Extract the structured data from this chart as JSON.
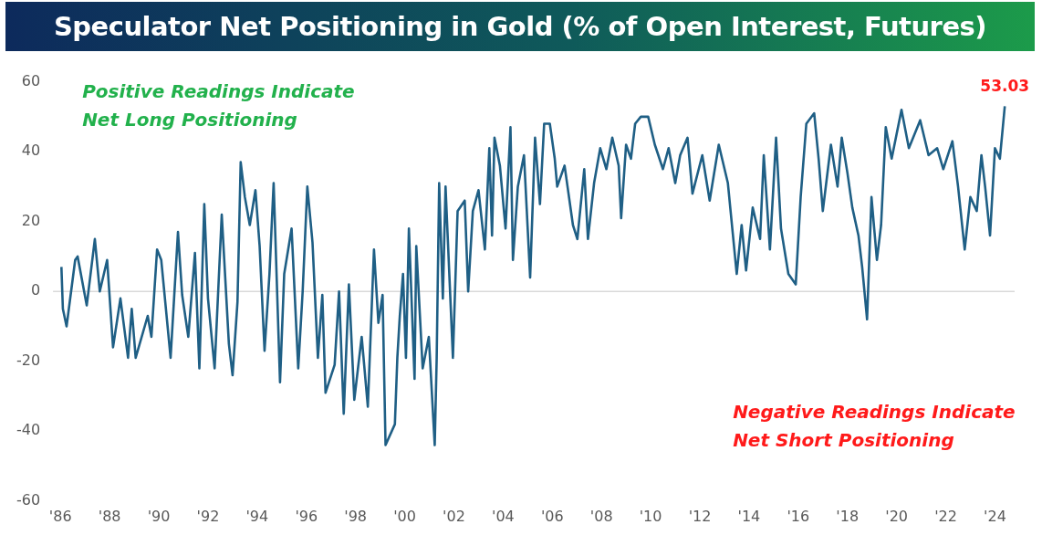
{
  "chart_data": {
    "type": "line",
    "title": "Speculator Net Positioning in Gold (% of Open Interest, Futures)",
    "x": [
      1986.04,
      1986.1,
      1986.25,
      1986.6,
      1986.7,
      1987.07,
      1987.4,
      1987.6,
      1987.9,
      1988.14,
      1988.44,
      1988.75,
      1988.9,
      1989.06,
      1989.55,
      1989.7,
      1989.93,
      1990.1,
      1990.48,
      1990.78,
      1990.95,
      1991.2,
      1991.47,
      1991.65,
      1991.85,
      1992.0,
      1992.27,
      1992.56,
      1992.85,
      1993.0,
      1993.2,
      1993.33,
      1993.5,
      1993.7,
      1993.93,
      1994.1,
      1994.3,
      1994.5,
      1994.67,
      1994.93,
      1995.1,
      1995.4,
      1995.67,
      1995.85,
      1996.04,
      1996.25,
      1996.47,
      1996.65,
      1996.78,
      1997.15,
      1997.33,
      1997.52,
      1997.73,
      1997.95,
      1998.25,
      1998.5,
      1998.75,
      1998.93,
      1999.1,
      1999.22,
      1999.6,
      1999.7,
      1999.8,
      1999.93,
      2000.05,
      2000.17,
      2000.4,
      2000.47,
      2000.73,
      2000.98,
      2001.22,
      2001.3,
      2001.4,
      2001.55,
      2001.66,
      2001.96,
      2002.15,
      2002.44,
      2002.58,
      2002.77,
      2003.0,
      2003.26,
      2003.44,
      2003.55,
      2003.65,
      2003.87,
      2004.1,
      2004.3,
      2004.4,
      2004.6,
      2004.85,
      2005.1,
      2005.3,
      2005.5,
      2005.67,
      2005.9,
      2006.1,
      2006.2,
      2006.5,
      2006.84,
      2007.02,
      2007.3,
      2007.45,
      2007.7,
      2007.95,
      2008.2,
      2008.44,
      2008.7,
      2008.8,
      2009.0,
      2009.2,
      2009.37,
      2009.6,
      2009.9,
      2010.17,
      2010.5,
      2010.73,
      2011.0,
      2011.2,
      2011.5,
      2011.7,
      2012.1,
      2012.4,
      2012.77,
      2013.14,
      2013.5,
      2013.7,
      2013.88,
      2014.15,
      2014.45,
      2014.6,
      2014.85,
      2015.1,
      2015.3,
      2015.6,
      2015.9,
      2016.1,
      2016.33,
      2016.65,
      2016.83,
      2017.0,
      2017.33,
      2017.6,
      2017.77,
      2018.0,
      2018.2,
      2018.45,
      2018.6,
      2018.8,
      2018.98,
      2019.2,
      2019.37,
      2019.56,
      2019.8,
      2020.2,
      2020.5,
      2020.96,
      2021.3,
      2021.65,
      2021.9,
      2022.27,
      2022.5,
      2022.77,
      2023.0,
      2023.26,
      2023.45,
      2023.6,
      2023.8,
      2024.0,
      2024.2,
      2024.4
    ],
    "series": [
      {
        "color": "#1f5f85",
        "values": [
          7,
          -5,
          -10,
          9,
          10,
          -4,
          15,
          0,
          9,
          -16,
          -2,
          -19,
          -5,
          -19,
          -7,
          -13,
          12,
          9,
          -19,
          17,
          -1,
          -13,
          11,
          -22,
          25,
          -2,
          -22,
          22,
          -15,
          -24,
          -3,
          37,
          27,
          19,
          29,
          13,
          -17,
          5,
          31,
          -26,
          5,
          18,
          -22,
          0,
          30,
          14,
          -19,
          -1,
          -29,
          -21,
          0,
          -35,
          2,
          -31,
          -13,
          -33,
          12,
          -9,
          -1,
          -44,
          -38,
          -19,
          -7,
          5,
          -19,
          18,
          -25,
          13,
          -22,
          -13,
          -44,
          -19,
          31,
          -2,
          30,
          -19,
          23,
          26,
          0,
          23,
          29,
          12,
          41,
          16,
          44,
          36,
          18,
          47,
          9,
          30,
          39,
          4,
          44,
          25,
          48,
          48,
          38,
          30,
          36,
          19,
          15,
          35,
          15,
          31,
          41,
          35,
          44,
          36,
          21,
          42,
          38,
          48,
          50,
          50,
          42,
          35,
          41,
          31,
          39,
          44,
          28,
          39,
          26,
          42,
          31,
          5,
          19,
          6,
          24,
          15,
          39,
          12,
          44,
          18,
          5,
          2,
          27,
          48,
          51,
          38,
          23,
          42,
          30,
          44,
          34,
          24,
          16,
          7,
          -8,
          27,
          9,
          19,
          47,
          38,
          52,
          41,
          49,
          39,
          41,
          35,
          43,
          30,
          12,
          27,
          23,
          39,
          30,
          16,
          41,
          38,
          53.03
        ]
      }
    ],
    "xlim": [
      1985.7,
      2024.8
    ],
    "xticks": [
      {
        "value": 1986,
        "label": "'86"
      },
      {
        "value": 1988,
        "label": "'88"
      },
      {
        "value": 1990,
        "label": "'90"
      },
      {
        "value": 1992,
        "label": "'92"
      },
      {
        "value": 1994,
        "label": "'94"
      },
      {
        "value": 1996,
        "label": "'96"
      },
      {
        "value": 1998,
        "label": "'98"
      },
      {
        "value": 2000,
        "label": "'00"
      },
      {
        "value": 2002,
        "label": "'02"
      },
      {
        "value": 2004,
        "label": "'04"
      },
      {
        "value": 2006,
        "label": "'06"
      },
      {
        "value": 2008,
        "label": "'08"
      },
      {
        "value": 2010,
        "label": "'10"
      },
      {
        "value": 2012,
        "label": "'12"
      },
      {
        "value": 2014,
        "label": "'14"
      },
      {
        "value": 2016,
        "label": "'16"
      },
      {
        "value": 2018,
        "label": "'18"
      },
      {
        "value": 2020,
        "label": "'20"
      },
      {
        "value": 2022,
        "label": "'22"
      },
      {
        "value": 2024,
        "label": "'24"
      }
    ],
    "ylim": [
      -60,
      60
    ],
    "yticks": [
      -60,
      -40,
      -20,
      0,
      20,
      40,
      60
    ],
    "ref_lines": [
      {
        "axis": "y",
        "value": 0,
        "color": "#d9d9d9"
      }
    ],
    "grid": false,
    "legend": false,
    "marker": "none",
    "line_style": "solid",
    "annotations": [
      "Positive Readings Indicate\nNet Long Positioning",
      "Negative Readings Indicate\nNet Short Positioning",
      {
        "text": "53.03",
        "x": 2024.4,
        "y": 53.03
      }
    ]
  }
}
